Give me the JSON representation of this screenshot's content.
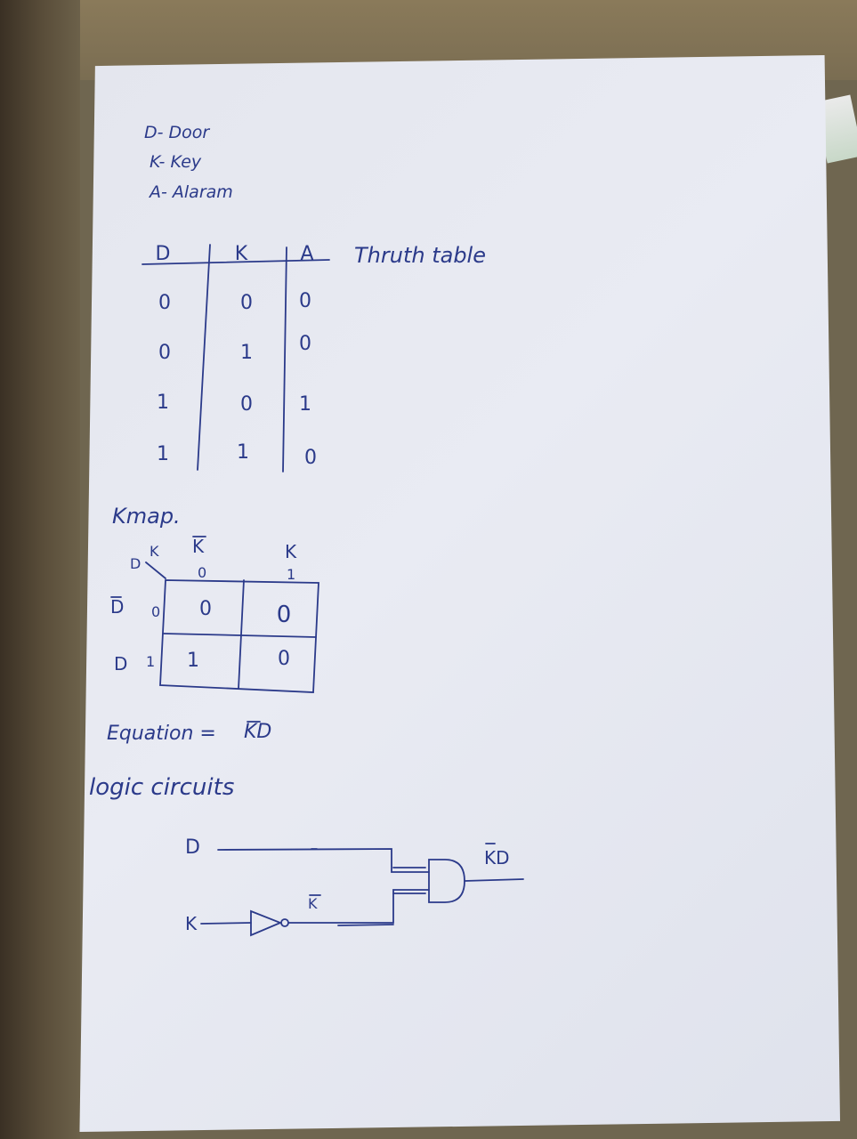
{
  "legend": [
    "D- Door",
    "K- Key",
    "A- Alaram"
  ],
  "truth_table": {
    "title": "Thruth table",
    "headers": [
      "D",
      "K",
      "A"
    ],
    "rows": [
      [
        "0",
        "0",
        "0"
      ],
      [
        "0",
        "1",
        "0"
      ],
      [
        "1",
        "0",
        "1"
      ],
      [
        "1",
        "1",
        "0"
      ]
    ]
  },
  "kmap": {
    "title": "Kmap.",
    "corner_row_var": "D",
    "corner_col_var": "K",
    "col_headers": [
      {
        "label": "K",
        "bar": true,
        "value": "0"
      },
      {
        "label": "K",
        "bar": false,
        "value": "1"
      }
    ],
    "row_headers": [
      {
        "label": "D",
        "bar": true,
        "value": "0"
      },
      {
        "label": "D",
        "bar": false,
        "value": "1"
      }
    ],
    "cells": [
      [
        "0",
        "0"
      ],
      [
        "1",
        "0"
      ]
    ]
  },
  "equation": {
    "label": "Equation =",
    "value": "KD"
  },
  "logic": {
    "title": "logic circuits",
    "input_d": "D",
    "input_k": "K",
    "inverter_output": "K",
    "gate_output": "KD"
  },
  "colors": {
    "ink": "#2b3a8a",
    "paper": "#e6e8f0",
    "desk": "#6f6650"
  }
}
